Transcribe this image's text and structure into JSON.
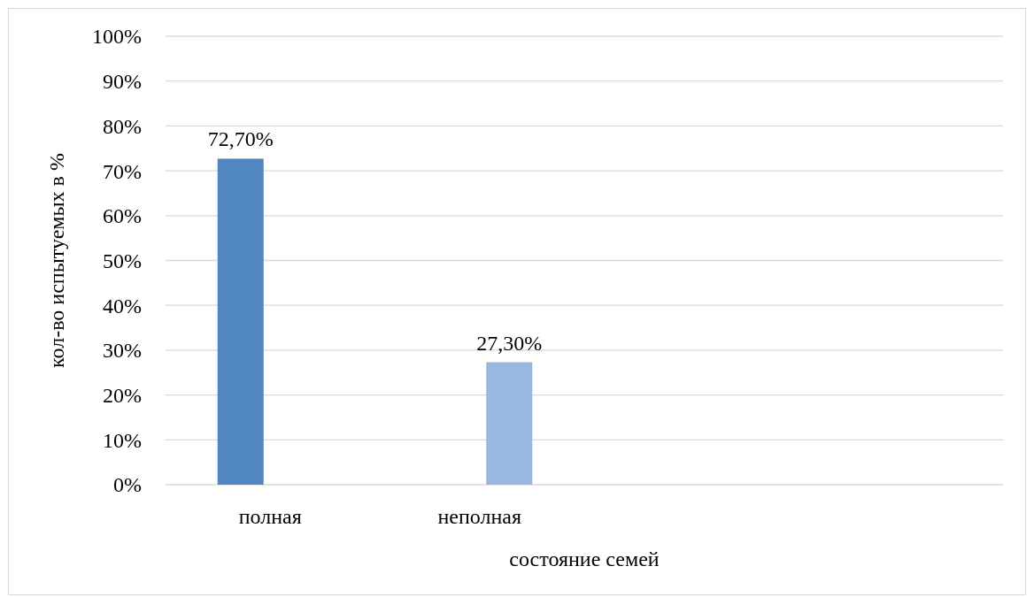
{
  "chart_data": {
    "type": "bar",
    "xlabel": "состояние семей",
    "ylabel": "кол-во испытуемых в %",
    "categories": [
      "полная",
      "неполная",
      null,
      null
    ],
    "series": [
      {
        "color": "#4f87be",
        "values": [
          72.7,
          null,
          null,
          null
        ],
        "value_labels": [
          "72,70%",
          null,
          null,
          null
        ]
      },
      {
        "color": "#9ab8df",
        "values": [
          null,
          27.3,
          null,
          null
        ],
        "value_labels": [
          null,
          "27,30%",
          null,
          null
        ]
      }
    ],
    "ylim": [
      0,
      100
    ],
    "yticks": [
      {
        "value": 0,
        "label": "0%"
      },
      {
        "value": 10,
        "label": "10%"
      },
      {
        "value": 20,
        "label": "20%"
      },
      {
        "value": 30,
        "label": "30%"
      },
      {
        "value": 40,
        "label": "40%"
      },
      {
        "value": 50,
        "label": "50%"
      },
      {
        "value": 60,
        "label": "60%"
      },
      {
        "value": 70,
        "label": "70%"
      },
      {
        "value": 80,
        "label": "80%"
      },
      {
        "value": 90,
        "label": "90%"
      },
      {
        "value": 100,
        "label": "100%"
      }
    ],
    "grid": "y"
  }
}
